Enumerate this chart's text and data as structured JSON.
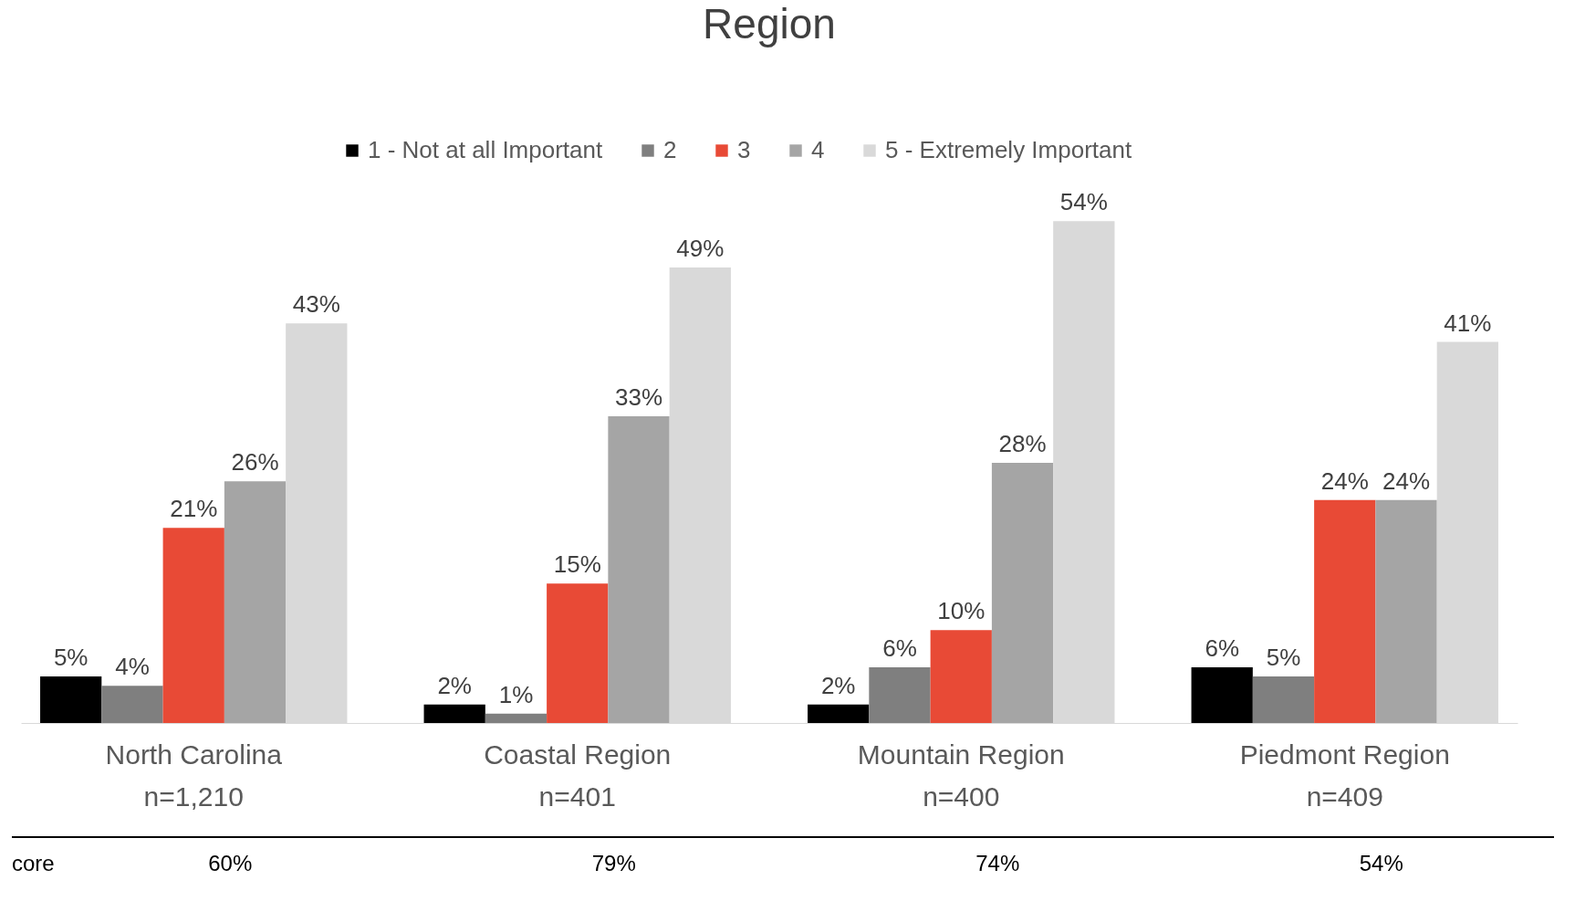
{
  "chart_data": {
    "type": "bar",
    "title": "Region",
    "categories": [
      "North Carolina\nn=1,210",
      "Coastal Region\nn=401",
      "Mountain Region\nn=400",
      "Piedmont Region\nn=409"
    ],
    "series": [
      {
        "name": "1 - Not at all Important",
        "color": "#000000",
        "values": [
          5,
          2,
          2,
          6
        ],
        "value_labels": [
          "5%",
          "2%",
          "2%",
          "6%"
        ]
      },
      {
        "name": "2",
        "color": "#7f7f7f",
        "values": [
          4,
          1,
          6,
          5
        ],
        "value_labels": [
          "4%",
          "1%",
          "6%",
          "5%"
        ]
      },
      {
        "name": "3",
        "color": "#e84a36",
        "values": [
          21,
          15,
          10,
          24
        ],
        "value_labels": [
          "21%",
          "15%",
          "10%",
          "24%"
        ]
      },
      {
        "name": "4",
        "color": "#a5a5a5",
        "values": [
          26,
          33,
          28,
          24
        ],
        "value_labels": [
          "26%",
          "33%",
          "28%",
          "24%"
        ]
      },
      {
        "name": "5 - Extremely Important",
        "color": "#d9d9d9",
        "values": [
          43,
          49,
          54,
          41
        ],
        "value_labels": [
          "43%",
          "49%",
          "54%",
          "41%"
        ]
      }
    ],
    "legend": "top",
    "grid": false,
    "annotations": [
      "core",
      "60%",
      "79%",
      "74%",
      "54%"
    ]
  }
}
